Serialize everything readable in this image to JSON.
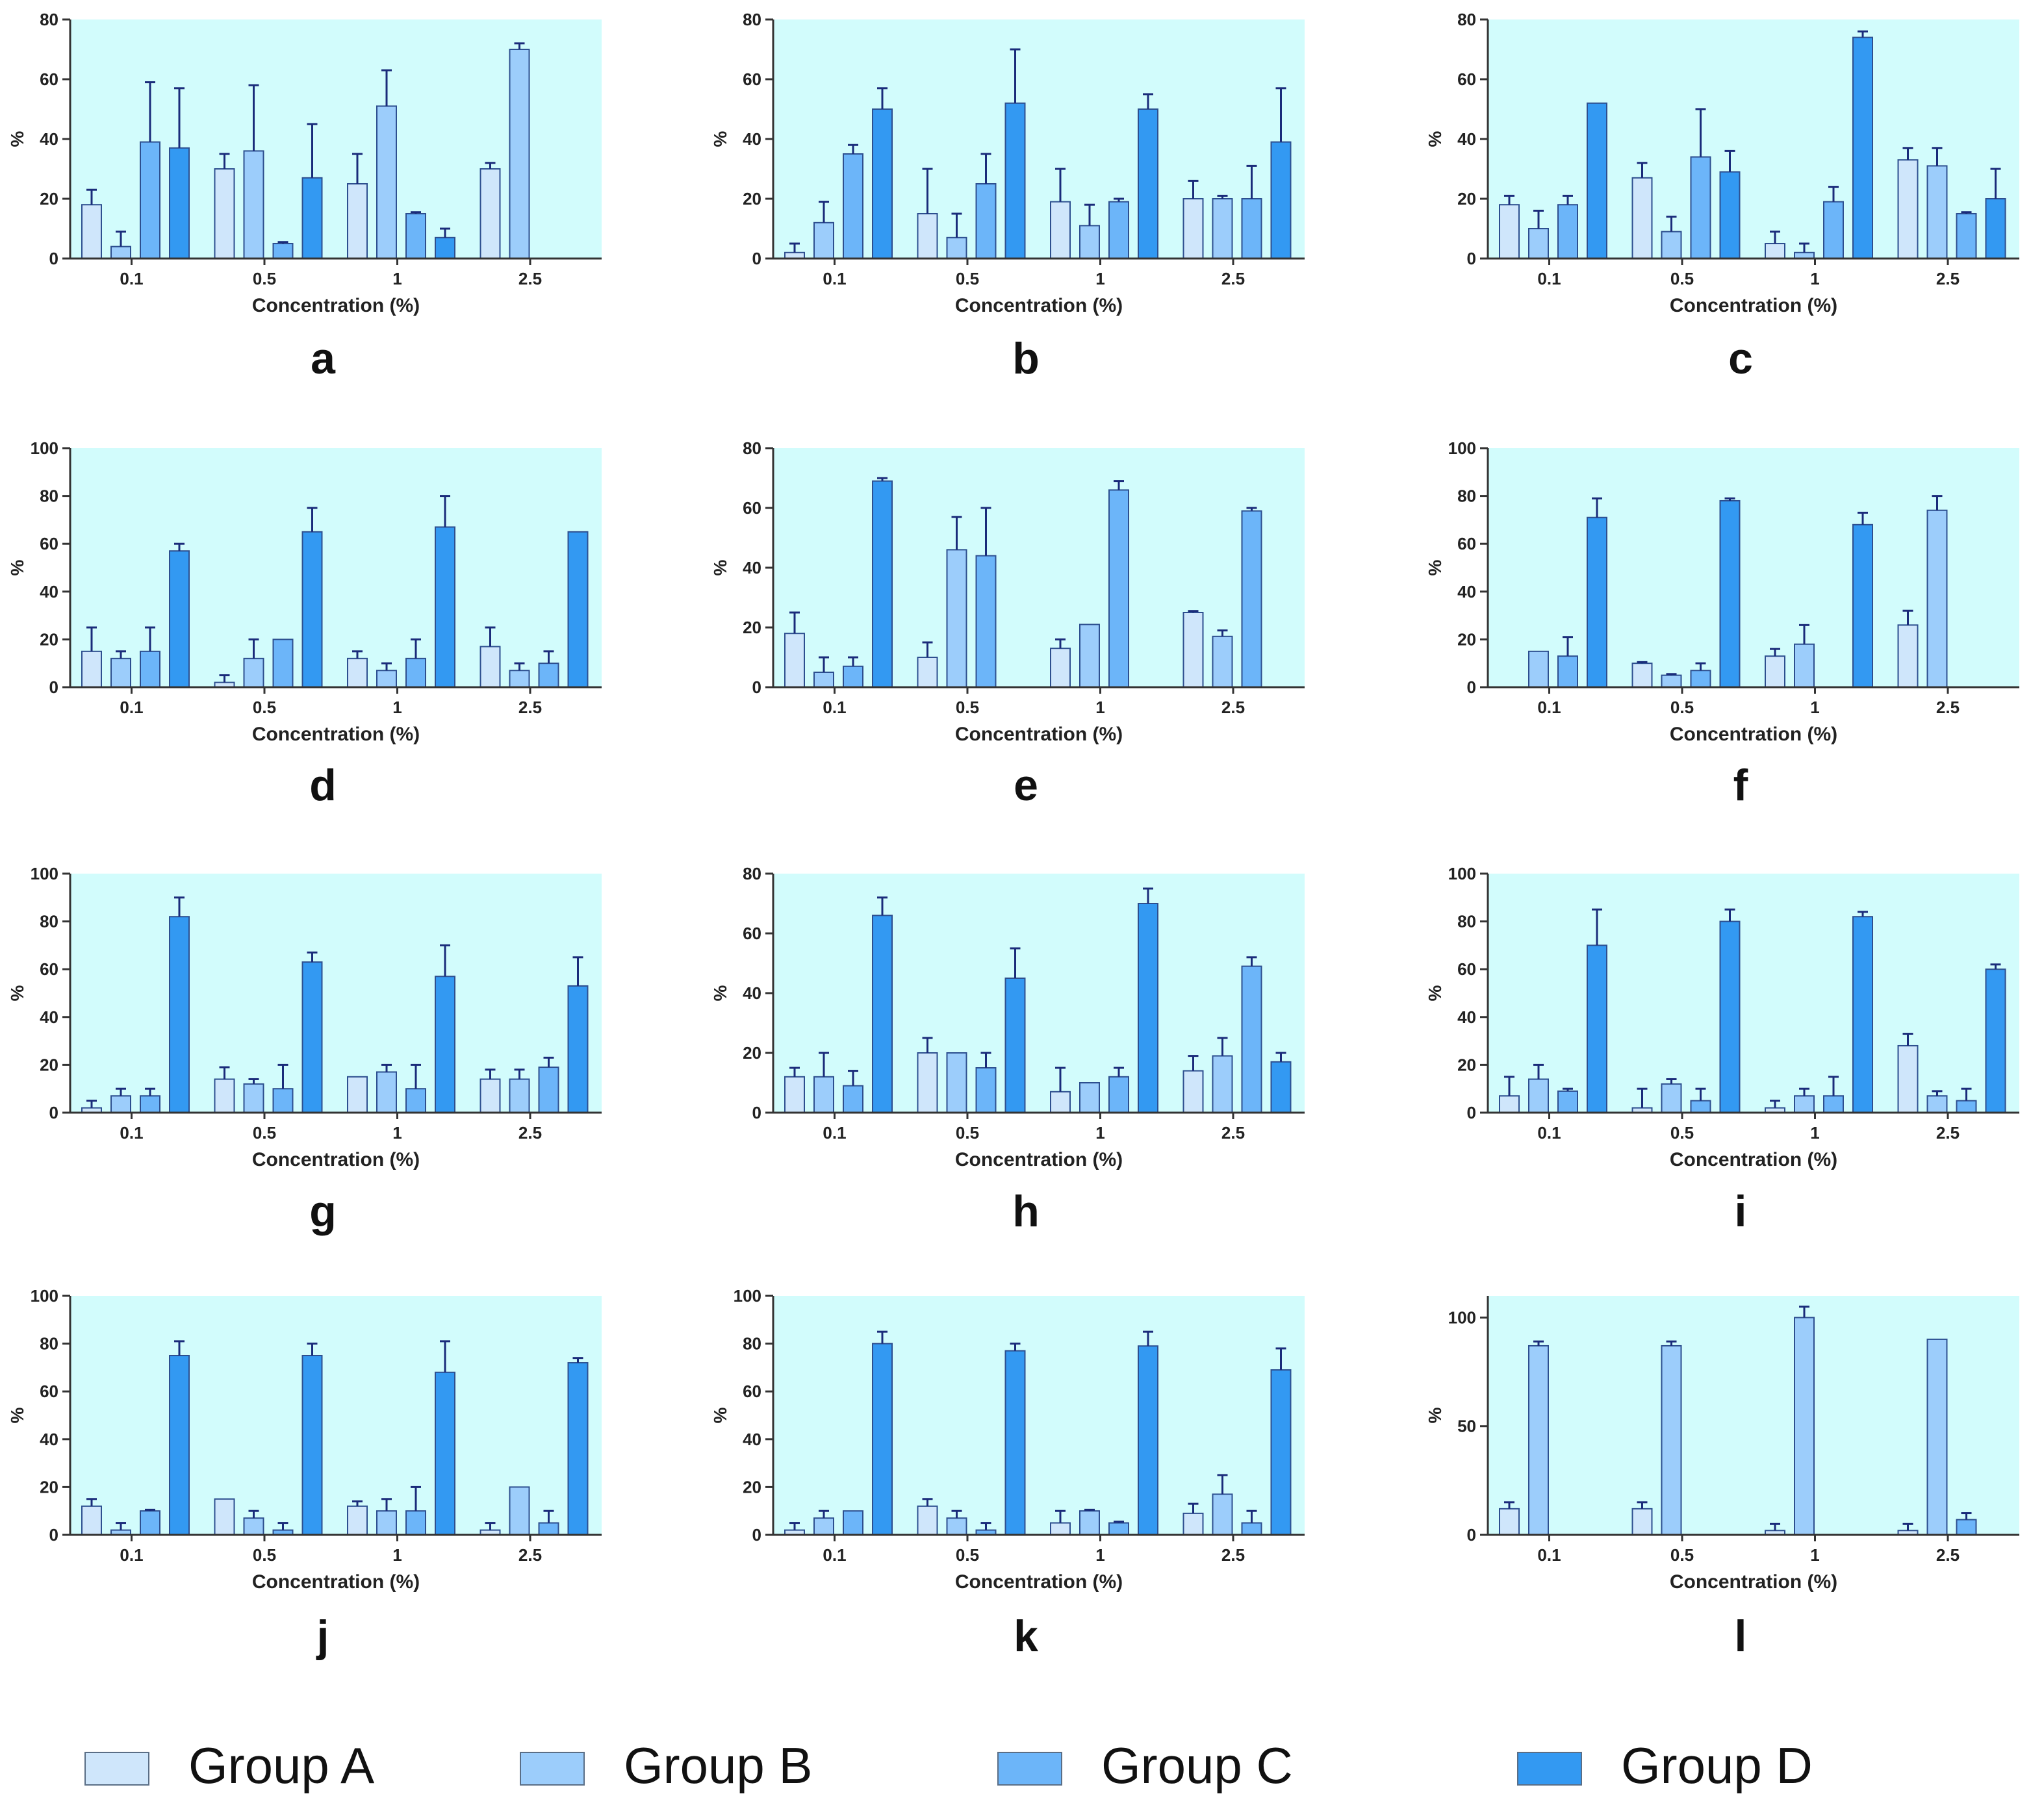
{
  "figure": {
    "legend": [
      {
        "label": "Group A",
        "color": "#cfe6fb"
      },
      {
        "label": "Group B",
        "color": "#9ccdfb"
      },
      {
        "label": "Group C",
        "color": "#6cb5f9"
      },
      {
        "label": "Group D",
        "color": "#3399f2"
      }
    ],
    "plot_background": "#d2fcfc",
    "axis_color": "#333333",
    "error_bar_color": "#1a2b7a"
  },
  "chart_data": [
    {
      "type": "bar",
      "panel": "a",
      "title": "",
      "xlabel": "Concentration (%)",
      "ylabel": "%",
      "ylim": [
        0,
        80
      ],
      "yticks": [
        0,
        20,
        40,
        60,
        80
      ],
      "categories": [
        "0.1",
        "0.5",
        "1",
        "2.5"
      ],
      "series": [
        {
          "name": "Group A",
          "values": [
            18,
            30,
            25,
            30
          ],
          "errors": [
            5,
            5,
            10,
            2
          ]
        },
        {
          "name": "Group B",
          "values": [
            4,
            36,
            51,
            70
          ],
          "errors": [
            5,
            22,
            12,
            2
          ]
        },
        {
          "name": "Group C",
          "values": [
            39,
            5,
            15,
            null
          ],
          "errors": [
            20,
            0.5,
            0.5,
            null
          ]
        },
        {
          "name": "Group D",
          "values": [
            37,
            27,
            7,
            null
          ],
          "errors": [
            20,
            18,
            3,
            null
          ]
        }
      ]
    },
    {
      "type": "bar",
      "panel": "b",
      "title": "",
      "xlabel": "Concentration (%)",
      "ylabel": "%",
      "ylim": [
        0,
        80
      ],
      "yticks": [
        0,
        20,
        40,
        60,
        80
      ],
      "categories": [
        "0.1",
        "0.5",
        "1",
        "2.5"
      ],
      "series": [
        {
          "name": "Group A",
          "values": [
            2,
            15,
            19,
            20
          ],
          "errors": [
            3,
            15,
            11,
            6
          ]
        },
        {
          "name": "Group B",
          "values": [
            12,
            7,
            11,
            20
          ],
          "errors": [
            7,
            8,
            7,
            1
          ]
        },
        {
          "name": "Group C",
          "values": [
            35,
            25,
            19,
            20
          ],
          "errors": [
            3,
            10,
            1,
            11
          ]
        },
        {
          "name": "Group D",
          "values": [
            50,
            52,
            50,
            39
          ],
          "errors": [
            7,
            18,
            5,
            18
          ]
        }
      ]
    },
    {
      "type": "bar",
      "panel": "c",
      "title": "",
      "xlabel": "Concentration (%)",
      "ylabel": "%",
      "ylim": [
        0,
        80
      ],
      "yticks": [
        0,
        20,
        40,
        60,
        80
      ],
      "categories": [
        "0.1",
        "0.5",
        "1",
        "2.5"
      ],
      "series": [
        {
          "name": "Group A",
          "values": [
            18,
            27,
            5,
            33
          ],
          "errors": [
            3,
            5,
            4,
            4
          ]
        },
        {
          "name": "Group B",
          "values": [
            10,
            9,
            2,
            31
          ],
          "errors": [
            6,
            5,
            3,
            6
          ]
        },
        {
          "name": "Group C",
          "values": [
            18,
            34,
            19,
            15
          ],
          "errors": [
            3,
            16,
            5,
            0.5
          ]
        },
        {
          "name": "Group D",
          "values": [
            52,
            29,
            74,
            20
          ],
          "errors": [
            0,
            7,
            2,
            10
          ]
        }
      ]
    },
    {
      "type": "bar",
      "panel": "d",
      "title": "",
      "xlabel": "Concentration (%)",
      "ylabel": "%",
      "ylim": [
        0,
        100
      ],
      "yticks": [
        0,
        20,
        40,
        60,
        80,
        100
      ],
      "categories": [
        "0.1",
        "0.5",
        "1",
        "2.5"
      ],
      "series": [
        {
          "name": "Group A",
          "values": [
            15,
            2,
            12,
            17
          ],
          "errors": [
            10,
            3,
            3,
            8
          ]
        },
        {
          "name": "Group B",
          "values": [
            12,
            12,
            7,
            7
          ],
          "errors": [
            3,
            8,
            3,
            3
          ]
        },
        {
          "name": "Group C",
          "values": [
            15,
            20,
            12,
            10
          ],
          "errors": [
            10,
            0,
            8,
            5
          ]
        },
        {
          "name": "Group D",
          "values": [
            57,
            65,
            67,
            65
          ],
          "errors": [
            3,
            10,
            13,
            0
          ]
        }
      ]
    },
    {
      "type": "bar",
      "panel": "e",
      "title": "",
      "xlabel": "Concentration (%)",
      "ylabel": "%",
      "ylim": [
        0,
        80
      ],
      "yticks": [
        0,
        20,
        40,
        60,
        80
      ],
      "categories": [
        "0.1",
        "0.5",
        "1",
        "2.5"
      ],
      "series": [
        {
          "name": "Group A",
          "values": [
            18,
            10,
            13,
            25
          ],
          "errors": [
            7,
            5,
            3,
            0.5
          ]
        },
        {
          "name": "Group B",
          "values": [
            5,
            46,
            21,
            17
          ],
          "errors": [
            5,
            11,
            0,
            2
          ]
        },
        {
          "name": "Group C",
          "values": [
            7,
            44,
            66,
            59
          ],
          "errors": [
            3,
            16,
            3,
            1
          ]
        },
        {
          "name": "Group D",
          "values": [
            69,
            null,
            null,
            null
          ],
          "errors": [
            1,
            null,
            null,
            null
          ]
        }
      ]
    },
    {
      "type": "bar",
      "panel": "f",
      "title": "",
      "xlabel": "Concentration (%)",
      "ylabel": "%",
      "ylim": [
        0,
        100
      ],
      "yticks": [
        0,
        20,
        40,
        60,
        80,
        100
      ],
      "categories": [
        "0.1",
        "0.5",
        "1",
        "2.5"
      ],
      "series": [
        {
          "name": "Group A",
          "values": [
            null,
            10,
            13,
            26
          ],
          "errors": [
            null,
            0.5,
            3,
            6
          ]
        },
        {
          "name": "Group B",
          "values": [
            15,
            5,
            18,
            74
          ],
          "errors": [
            0,
            0.5,
            8,
            6
          ]
        },
        {
          "name": "Group C",
          "values": [
            13,
            7,
            null,
            null
          ],
          "errors": [
            8,
            3,
            null,
            null
          ]
        },
        {
          "name": "Group D",
          "values": [
            71,
            78,
            68,
            null
          ],
          "errors": [
            8,
            1,
            5,
            null
          ]
        }
      ]
    },
    {
      "type": "bar",
      "panel": "g",
      "title": "",
      "xlabel": "Concentration (%)",
      "ylabel": "%",
      "ylim": [
        0,
        100
      ],
      "yticks": [
        0,
        20,
        40,
        60,
        80,
        100
      ],
      "categories": [
        "0.1",
        "0.5",
        "1",
        "2.5"
      ],
      "series": [
        {
          "name": "Group A",
          "values": [
            2,
            14,
            15,
            14
          ],
          "errors": [
            3,
            5,
            0,
            4
          ]
        },
        {
          "name": "Group B",
          "values": [
            7,
            12,
            17,
            14
          ],
          "errors": [
            3,
            2,
            3,
            4
          ]
        },
        {
          "name": "Group C",
          "values": [
            7,
            10,
            10,
            19
          ],
          "errors": [
            3,
            10,
            10,
            4
          ]
        },
        {
          "name": "Group D",
          "values": [
            82,
            63,
            57,
            53
          ],
          "errors": [
            8,
            4,
            13,
            12
          ]
        }
      ]
    },
    {
      "type": "bar",
      "panel": "h",
      "title": "",
      "xlabel": "Concentration (%)",
      "ylabel": "%",
      "ylim": [
        0,
        80
      ],
      "yticks": [
        0,
        20,
        40,
        60,
        80
      ],
      "categories": [
        "0.1",
        "0.5",
        "1",
        "2.5"
      ],
      "series": [
        {
          "name": "Group A",
          "values": [
            12,
            20,
            7,
            14
          ],
          "errors": [
            3,
            5,
            8,
            5
          ]
        },
        {
          "name": "Group B",
          "values": [
            12,
            20,
            10,
            19
          ],
          "errors": [
            8,
            0,
            0,
            6
          ]
        },
        {
          "name": "Group C",
          "values": [
            9,
            15,
            12,
            49
          ],
          "errors": [
            5,
            5,
            3,
            3
          ]
        },
        {
          "name": "Group D",
          "values": [
            66,
            45,
            70,
            17
          ],
          "errors": [
            6,
            10,
            5,
            3
          ]
        }
      ]
    },
    {
      "type": "bar",
      "panel": "i",
      "title": "",
      "xlabel": "Concentration (%)",
      "ylabel": "%",
      "ylim": [
        0,
        100
      ],
      "yticks": [
        0,
        20,
        40,
        60,
        80,
        100
      ],
      "categories": [
        "0.1",
        "0.5",
        "1",
        "2.5"
      ],
      "series": [
        {
          "name": "Group A",
          "values": [
            7,
            2,
            2,
            28
          ],
          "errors": [
            8,
            8,
            3,
            5
          ]
        },
        {
          "name": "Group B",
          "values": [
            14,
            12,
            7,
            7
          ],
          "errors": [
            6,
            2,
            3,
            2
          ]
        },
        {
          "name": "Group C",
          "values": [
            9,
            5,
            7,
            5
          ],
          "errors": [
            1,
            5,
            8,
            5
          ]
        },
        {
          "name": "Group D",
          "values": [
            70,
            80,
            82,
            60
          ],
          "errors": [
            15,
            5,
            2,
            2
          ]
        }
      ]
    },
    {
      "type": "bar",
      "panel": "j",
      "title": "",
      "xlabel": "Concentration (%)",
      "ylabel": "%",
      "ylim": [
        0,
        100
      ],
      "yticks": [
        0,
        20,
        40,
        60,
        80,
        100
      ],
      "categories": [
        "0.1",
        "0.5",
        "1",
        "2.5"
      ],
      "series": [
        {
          "name": "Group A",
          "values": [
            12,
            15,
            12,
            2
          ],
          "errors": [
            3,
            0,
            2,
            3
          ]
        },
        {
          "name": "Group B",
          "values": [
            2,
            7,
            10,
            20
          ],
          "errors": [
            3,
            3,
            5,
            0
          ]
        },
        {
          "name": "Group C",
          "values": [
            10,
            2,
            10,
            5
          ],
          "errors": [
            0.5,
            3,
            10,
            5
          ]
        },
        {
          "name": "Group D",
          "values": [
            75,
            75,
            68,
            72
          ],
          "errors": [
            6,
            5,
            13,
            2
          ]
        }
      ]
    },
    {
      "type": "bar",
      "panel": "k",
      "title": "",
      "xlabel": "Concentration (%)",
      "ylabel": "%",
      "ylim": [
        0,
        100
      ],
      "yticks": [
        0,
        20,
        40,
        60,
        80,
        100
      ],
      "categories": [
        "0.1",
        "0.5",
        "1",
        "2.5"
      ],
      "series": [
        {
          "name": "Group A",
          "values": [
            2,
            12,
            5,
            9
          ],
          "errors": [
            3,
            3,
            5,
            4
          ]
        },
        {
          "name": "Group B",
          "values": [
            7,
            7,
            10,
            17
          ],
          "errors": [
            3,
            3,
            0.5,
            8
          ]
        },
        {
          "name": "Group C",
          "values": [
            10,
            2,
            5,
            5
          ],
          "errors": [
            0,
            3,
            0.5,
            5
          ]
        },
        {
          "name": "Group D",
          "values": [
            80,
            77,
            79,
            69
          ],
          "errors": [
            5,
            3,
            6,
            9
          ]
        }
      ]
    },
    {
      "type": "bar",
      "panel": "l",
      "title": "",
      "xlabel": "Concentration (%)",
      "ylabel": "%",
      "ylim": [
        0,
        110
      ],
      "yticks": [
        0,
        50,
        100
      ],
      "categories": [
        "0.1",
        "0.5",
        "1",
        "2.5"
      ],
      "series": [
        {
          "name": "Group A",
          "values": [
            12,
            12,
            2,
            2
          ],
          "errors": [
            3,
            3,
            3,
            3
          ]
        },
        {
          "name": "Group B",
          "values": [
            87,
            87,
            100,
            90
          ],
          "errors": [
            2,
            2,
            5,
            0
          ]
        },
        {
          "name": "Group C",
          "values": [
            null,
            null,
            null,
            7
          ],
          "errors": [
            null,
            null,
            null,
            3
          ]
        },
        {
          "name": "Group D",
          "values": [
            null,
            null,
            null,
            null
          ],
          "errors": [
            null,
            null,
            null,
            null
          ]
        }
      ]
    }
  ]
}
